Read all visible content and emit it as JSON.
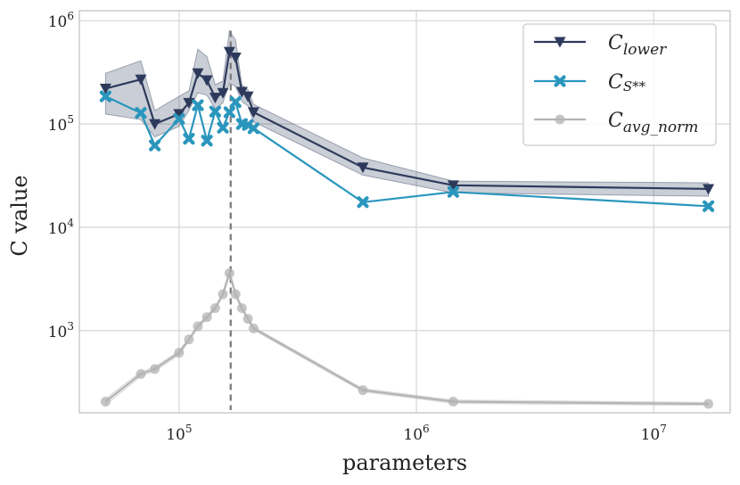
{
  "chart_data": {
    "type": "line",
    "xscale": "log",
    "yscale": "log",
    "xlim": [
      38000,
      21000000
    ],
    "ylim": [
      160,
      1250000
    ],
    "grid": true,
    "xlabel": "parameters",
    "ylabel": "C value",
    "x_ticks": [
      {
        "value": 100000,
        "base": "10",
        "exp": "5"
      },
      {
        "value": 1000000,
        "base": "10",
        "exp": "6"
      },
      {
        "value": 10000000,
        "base": "10",
        "exp": "7"
      }
    ],
    "y_ticks": [
      {
        "value": 1000,
        "base": "10",
        "exp": "3"
      },
      {
        "value": 10000,
        "base": "10",
        "exp": "4"
      },
      {
        "value": 100000,
        "base": "10",
        "exp": "5"
      },
      {
        "value": 1000000,
        "base": "10",
        "exp": "6"
      }
    ],
    "legend_position": "top-right",
    "vline": {
      "x": 165000,
      "y_range": [
        170,
        800000
      ],
      "color": "#777777",
      "style": "dashed"
    },
    "x": [
      49000,
      69000,
      79000,
      100000,
      110000,
      120000,
      131000,
      142000,
      153000,
      163000,
      173000,
      184000,
      195000,
      206000,
      595000,
      1430000,
      17000000
    ],
    "series": [
      {
        "name_main": "C",
        "name_sub": "lower",
        "name_sup": "",
        "color": "#2d3a5c",
        "marker": "triangle-down",
        "values": [
          220000,
          270000,
          100000,
          125000,
          160000,
          310000,
          265000,
          180000,
          200000,
          500000,
          440000,
          205000,
          185000,
          130000,
          38000,
          25500,
          23500
        ],
        "band_low": [
          125000,
          110000,
          75000,
          95000,
          135000,
          200000,
          190000,
          140000,
          160000,
          250000,
          230000,
          165000,
          150000,
          105000,
          32000,
          21500,
          20000
        ],
        "band_high": [
          310000,
          410000,
          135000,
          185000,
          210000,
          530000,
          450000,
          240000,
          260000,
          800000,
          650000,
          240000,
          215000,
          155000,
          47000,
          28000,
          27000
        ]
      },
      {
        "name_main": "C",
        "name_sub": "",
        "name_sup": "S**",
        "color": "#2b96bd",
        "marker": "x",
        "values": [
          185000,
          128000,
          62000,
          112000,
          72000,
          152000,
          69000,
          132000,
          92000,
          130000,
          163000,
          100000,
          98000,
          91000,
          17500,
          22000,
          16000
        ]
      },
      {
        "name_main": "C",
        "name_sub": "avg_norm",
        "name_sup": "",
        "color": "#b3b3b3",
        "marker": "circle",
        "values": [
          205,
          380,
          425,
          610,
          820,
          1100,
          1350,
          1650,
          2250,
          3600,
          2250,
          1650,
          1300,
          1050,
          265,
          205,
          195
        ],
        "band_low": [
          190,
          360,
          405,
          580,
          790,
          1060,
          1300,
          1590,
          2150,
          3350,
          2150,
          1590,
          1250,
          1010,
          255,
          197,
          188
        ],
        "band_high": [
          220,
          400,
          445,
          640,
          850,
          1140,
          1400,
          1710,
          2350,
          3900,
          2350,
          1710,
          1350,
          1090,
          275,
          213,
          202
        ]
      }
    ]
  }
}
